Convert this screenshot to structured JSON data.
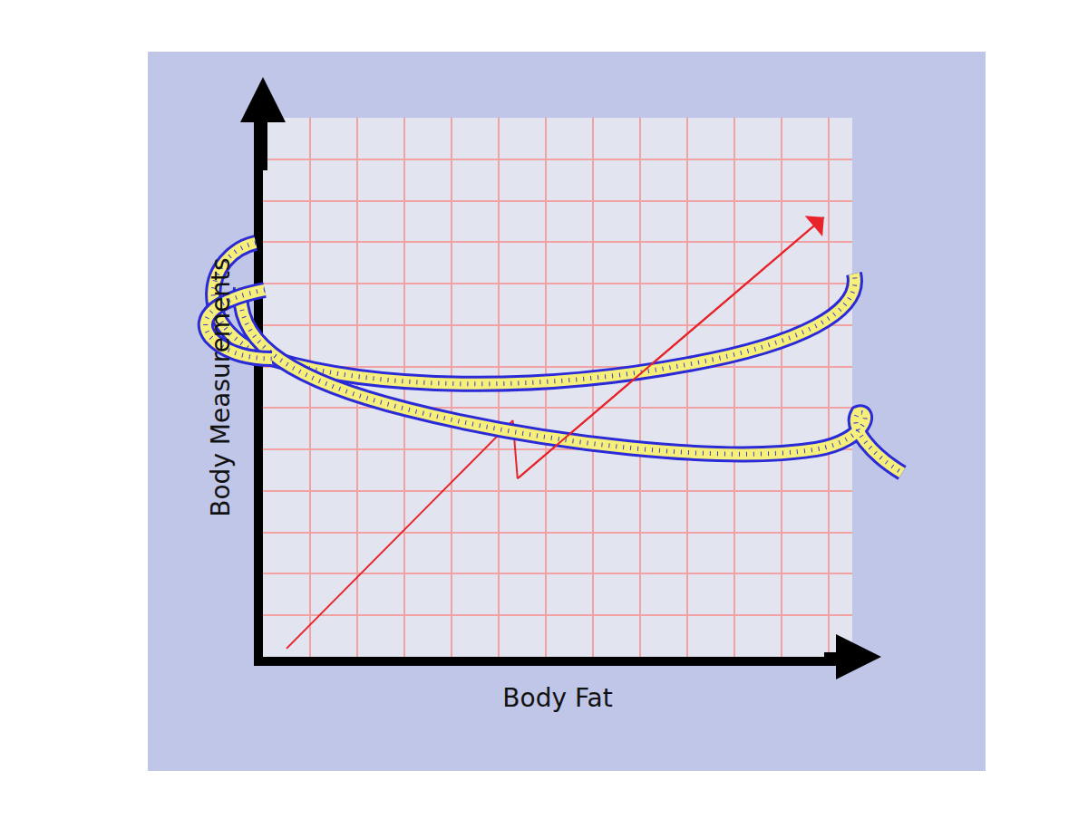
{
  "chart_data": {
    "type": "line",
    "x_label": "Body Fat",
    "y_label": "Body Measurements",
    "x": [
      0.5,
      5.3,
      5.4,
      11.9
    ],
    "values": [
      0.2,
      5.7,
      4.3,
      10.6
    ],
    "color": "#e8242a",
    "marker": "arrow",
    "xlim": [
      0,
      12.5
    ],
    "ylim": [
      0,
      13
    ],
    "xticks": [
      0,
      1,
      2,
      3,
      4,
      5,
      6,
      7,
      8,
      9,
      10,
      11,
      12
    ],
    "yticks": [
      0,
      1,
      2,
      3,
      4,
      5,
      6,
      7,
      8,
      9,
      10,
      11,
      12,
      13
    ],
    "grid": true,
    "tick_labels": false
  }
}
